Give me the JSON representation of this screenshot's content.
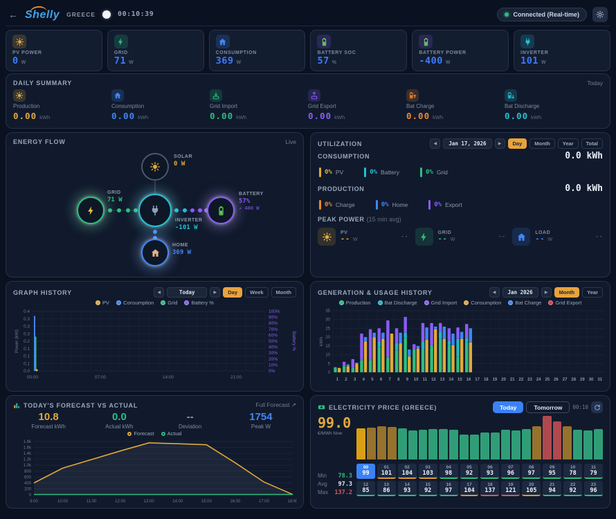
{
  "header": {
    "back_icon": "←",
    "brand": "Shelly",
    "site": "GREECE",
    "clock": "00:10:39",
    "status": "Connected (Real-time)"
  },
  "icons": {
    "prev": "◀",
    "next": "▶"
  },
  "stats": [
    {
      "label": "PV POWER",
      "value": "0",
      "unit": "W",
      "icon": "sun-icon",
      "icon_color": "#e2a93b",
      "tile_color": "#e2a93b"
    },
    {
      "label": "GRID",
      "value": "71",
      "unit": "W",
      "icon": "bolt-icon",
      "icon_color": "#2dbe7f",
      "tile_color": "#2dbe7f"
    },
    {
      "label": "CONSUMPTION",
      "value": "369",
      "unit": "W",
      "icon": "home-icon",
      "icon_color": "#4285f4",
      "tile_color": "#4285f4"
    },
    {
      "label": "BATTERY SOC",
      "value": "57",
      "unit": "%",
      "icon": "battery-icon",
      "icon_color": "#6ccf5f",
      "tile_color": "#8b5cf6"
    },
    {
      "label": "BATTERY POWER",
      "value": "-400",
      "unit": "W",
      "icon": "battery-icon",
      "icon_color": "#6ccf5f",
      "tile_color": "#8b5cf6"
    },
    {
      "label": "INVERTER",
      "value": "101",
      "unit": "W",
      "icon": "inverter-icon",
      "icon_color": "#22c0d4",
      "tile_color": "#22c0d4"
    }
  ],
  "daily_summary": {
    "title": "DAILY SUMMARY",
    "period": "Today",
    "items": [
      {
        "label": "Production",
        "value": "0.00",
        "unit": "kWh",
        "color": "#e2a93b",
        "icon": "sun-icon"
      },
      {
        "label": "Consumption",
        "value": "0.00",
        "unit": "kWh",
        "color": "#4285f4",
        "icon": "home-icon"
      },
      {
        "label": "Grid Import",
        "value": "0.00",
        "unit": "kWh",
        "color": "#2dbe7f",
        "icon": "grid-import-icon"
      },
      {
        "label": "Grid Export",
        "value": "0.00",
        "unit": "kWh",
        "color": "#8b5cf6",
        "icon": "grid-export-icon"
      },
      {
        "label": "Bat Charge",
        "value": "0.00",
        "unit": "kWh",
        "color": "#f0862c",
        "icon": "battery-charge-icon"
      },
      {
        "label": "Bat Discharge",
        "value": "0.00",
        "unit": "kWh",
        "color": "#22c0d4",
        "icon": "battery-discharge-icon"
      }
    ]
  },
  "energy_flow": {
    "title": "ENERGY FLOW",
    "live": "Live",
    "nodes": {
      "solar": {
        "label": "SOLAR",
        "value": "0 W",
        "color": "#e2a93b"
      },
      "grid": {
        "label": "GRID",
        "value": "71 W",
        "color": "#2dbe7f"
      },
      "inverter": {
        "label": "INVERTER",
        "value": "-101 W",
        "color": "#22c0d4"
      },
      "battery": {
        "label": "BATTERY",
        "value": "57%",
        "sub": "↗ 400 W",
        "color": "#8b5cf6"
      },
      "home": {
        "label": "HOME",
        "value": "369 W",
        "color": "#4285f4"
      }
    }
  },
  "utilization": {
    "title": "UTILIZATION",
    "date": "Jan 17, 2026",
    "ranges": [
      "Day",
      "Month",
      "Year",
      "Total"
    ],
    "active_range": "Day",
    "consumption": {
      "label": "CONSUMPTION",
      "value": "0.0 kWh",
      "legend": [
        {
          "pct": "0%",
          "label": "PV",
          "color": "#e2a93b"
        },
        {
          "pct": "0%",
          "label": "Battery",
          "color": "#22c0d4"
        },
        {
          "pct": "0%",
          "label": "Grid",
          "color": "#2dbe7f"
        }
      ]
    },
    "production": {
      "label": "PRODUCTION",
      "value": "0.0 kWh",
      "legend": [
        {
          "pct": "0%",
          "label": "Charge",
          "color": "#f0862c"
        },
        {
          "pct": "0%",
          "label": "Home",
          "color": "#4285f4"
        },
        {
          "pct": "0%",
          "label": "Export",
          "color": "#8b5cf6"
        }
      ]
    },
    "peak_power": {
      "title": "PEAK POWER",
      "subtitle": "(15 min avg)",
      "items": [
        {
          "label": "PV",
          "value": "--",
          "unit": "W",
          "right": "--",
          "icon": "sun-icon",
          "color": "#e2a93b"
        },
        {
          "label": "GRID",
          "value": "--",
          "unit": "W",
          "right": "--",
          "icon": "bolt-icon",
          "color": "#2dbe7f"
        },
        {
          "label": "LOAD",
          "value": "--",
          "unit": "W",
          "right": "--",
          "icon": "home-icon",
          "color": "#4285f4"
        }
      ]
    }
  },
  "graph_history": {
    "title": "GRAPH HISTORY",
    "date": "Today",
    "ranges": [
      "Day",
      "Week",
      "Month"
    ],
    "active_range": "Day",
    "legend": [
      {
        "name": "PV",
        "color": "#e2a93b"
      },
      {
        "name": "Consumption",
        "color": "#4285f4"
      },
      {
        "name": "Grid",
        "color": "#2dbe7f"
      },
      {
        "name": "Battery %",
        "color": "#8b5cf6"
      }
    ],
    "chart_data": {
      "type": "line",
      "ylabel_left": "Power (kW)",
      "ylabel_right": "Battery %",
      "y_left_ticks": [
        "0.4",
        "0.3",
        "0.3",
        "0.3",
        "0.2",
        "0.1",
        "0.1",
        "0.1",
        "0.0"
      ],
      "y_left_max": 0.4,
      "y_right_ticks": [
        "100%",
        "90%",
        "80%",
        "70%",
        "60%",
        "50%",
        "40%",
        "30%",
        "20%",
        "10%",
        "0%"
      ],
      "x_ticks": [
        "00:00",
        "07:00",
        "14:00",
        "21:00"
      ],
      "x_hours": 24,
      "spikes": [
        {
          "name": "Consumption",
          "color": "#4285f4",
          "value": 0.37
        },
        {
          "name": "Grid",
          "color": "#2dbe7f",
          "value": 0.23
        },
        {
          "name": "PV",
          "color": "#e2a93b",
          "value": 0.01
        }
      ]
    }
  },
  "generation_history": {
    "title": "GENERATION & USAGE HISTORY",
    "date": "Jan 2026",
    "ranges": [
      "Month",
      "Year"
    ],
    "active_range": "Month",
    "legend": [
      {
        "name": "Production",
        "color": "#2dbe7f"
      },
      {
        "name": "Bat Discharge",
        "color": "#1fb6c9"
      },
      {
        "name": "Grid Import",
        "color": "#8b5cf6"
      },
      {
        "name": "Consumption",
        "color": "#e2a93b"
      },
      {
        "name": "Bat Charge",
        "color": "#3f87f5"
      },
      {
        "name": "Grid Export",
        "color": "#d64550"
      }
    ],
    "chart_data": {
      "type": "bar",
      "ylabel": "kWh",
      "y_ticks": [
        0,
        5,
        10,
        15,
        20,
        25,
        30,
        35
      ],
      "y_max": 35,
      "categories": [
        1,
        2,
        3,
        4,
        5,
        6,
        7,
        8,
        9,
        10,
        11,
        12,
        13,
        14,
        15,
        16,
        17,
        18,
        19,
        20,
        21,
        22,
        23,
        24,
        25,
        26,
        27,
        28,
        29,
        30,
        31
      ],
      "series": [
        {
          "name": "Production",
          "stack": "gen",
          "color": "#2dbe7f",
          "values": [
            2.5,
            3.5,
            2.5,
            7,
            7,
            14.5,
            8.5,
            12.5,
            19.5,
            13,
            13,
            14.5,
            19,
            15.5,
            9,
            17
          ]
        },
        {
          "name": "Bat Discharge",
          "stack": "gen",
          "color": "#1fb6c9",
          "values": [
            0,
            0.5,
            0,
            0,
            0.5,
            3,
            0,
            4,
            3,
            0,
            4.5,
            1,
            4,
            2.5,
            10,
            2.5
          ]
        },
        {
          "name": "Grid Import",
          "stack": "gen",
          "color": "#8b5cf6",
          "values": [
            0.5,
            2,
            5,
            15,
            17,
            7.5,
            21,
            8.5,
            9,
            3,
            10.5,
            12.5,
            5,
            7,
            6.5,
            8
          ]
        },
        {
          "name": "Consumption",
          "stack": "use",
          "color": "#e2a93b",
          "values": [
            2.5,
            3.5,
            5,
            17.5,
            20,
            19,
            22,
            16.5,
            9,
            13.5,
            18.5,
            24.5,
            19,
            15.5,
            19,
            17
          ]
        },
        {
          "name": "Bat Charge",
          "stack": "use",
          "color": "#3f87f5",
          "values": [
            0,
            1,
            0.5,
            2.5,
            2.5,
            3.5,
            0,
            6,
            4,
            1.5,
            7,
            1.5,
            7,
            6.5,
            4,
            8
          ]
        },
        {
          "name": "Grid Export",
          "stack": "use",
          "color": "#d64550",
          "values": [
            0,
            0,
            0,
            0,
            0,
            0,
            0,
            0,
            0,
            0,
            0,
            0,
            0,
            0,
            0,
            0
          ]
        }
      ]
    }
  },
  "forecast": {
    "title": "TODAY'S FORECAST VS ACTUAL",
    "link": "Full Forecast ↗",
    "stats": [
      {
        "value": "10.8",
        "label": "Forecast kWh",
        "color": "#e2a93b"
      },
      {
        "value": "0.0",
        "label": "Actual kWh",
        "color": "#2dbe7f"
      },
      {
        "value": "--",
        "label": "Deviation",
        "color": "#8b98ab"
      },
      {
        "value": "1754",
        "label": "Peak W",
        "color": "#4285f4"
      }
    ],
    "legend": [
      {
        "name": "Forecast",
        "color": "#e2a93b"
      },
      {
        "name": "Actual",
        "color": "#2dbe7f"
      }
    ],
    "chart_data": {
      "type": "line",
      "y_ticks": [
        "1.8k",
        "1.6k",
        "1.4k",
        "1.2k",
        "1.0k",
        "800",
        "600",
        "400",
        "200",
        "0"
      ],
      "y_max": 1800,
      "x": [
        "9:00",
        "10:00",
        "11:00",
        "12:00",
        "13:00",
        "14:00",
        "15:00",
        "16:00",
        "17:00",
        "18:00"
      ],
      "series": [
        {
          "name": "Forecast",
          "color": "#e2a93b",
          "values": [
            400,
            900,
            1190,
            1480,
            1754,
            1725,
            1690,
            1080,
            430,
            10
          ]
        },
        {
          "name": "Actual",
          "color": "#2dbe7f",
          "values": [
            0,
            0,
            0,
            0,
            0,
            0,
            0,
            0,
            0,
            0
          ]
        }
      ]
    }
  },
  "price": {
    "title": "ELECTRICITY PRICE (GREECE)",
    "tabs": [
      "Today",
      "Tomorrow"
    ],
    "active_tab": "Today",
    "time": "00:10",
    "now_value": "99.0",
    "now_unit": "€/MWh Now",
    "stats": {
      "min_label": "Min",
      "min": "78.3",
      "min_color": "#2dbe7f",
      "avg_label": "Avg",
      "avg": "97.3",
      "avg_color": "#dfe6f0",
      "max_label": "Max",
      "max": "137.2",
      "max_color": "#cf5b63"
    },
    "bar_colors": {
      "now": "#d9a014",
      "low": "#2f9e77",
      "mid": "#96722c",
      "high": "#b0494f"
    },
    "cell_colors": {
      "now": "#3b82f6",
      "low": "#2dbe7f",
      "mid": "#e09a2d",
      "high": "#cf5b63"
    },
    "hours": [
      {
        "h": "00",
        "p": 99,
        "level": "now"
      },
      {
        "h": "01",
        "p": 101,
        "level": "mid"
      },
      {
        "h": "02",
        "p": 104,
        "level": "mid"
      },
      {
        "h": "03",
        "p": 103,
        "level": "mid"
      },
      {
        "h": "04",
        "p": 98,
        "level": "low"
      },
      {
        "h": "05",
        "p": 92,
        "level": "low"
      },
      {
        "h": "06",
        "p": 93,
        "level": "low"
      },
      {
        "h": "07",
        "p": 96,
        "level": "low"
      },
      {
        "h": "08",
        "p": 97,
        "level": "low"
      },
      {
        "h": "09",
        "p": 95,
        "level": "low"
      },
      {
        "h": "10",
        "p": 78,
        "level": "low"
      },
      {
        "h": "11",
        "p": 79,
        "level": "low"
      },
      {
        "h": "12",
        "p": 85,
        "level": "low"
      },
      {
        "h": "13",
        "p": 86,
        "level": "low"
      },
      {
        "h": "14",
        "p": 93,
        "level": "low"
      },
      {
        "h": "15",
        "p": 92,
        "level": "low"
      },
      {
        "h": "16",
        "p": 97,
        "level": "low"
      },
      {
        "h": "17",
        "p": 104,
        "level": "mid"
      },
      {
        "h": "18",
        "p": 137,
        "level": "high"
      },
      {
        "h": "19",
        "p": 121,
        "level": "high"
      },
      {
        "h": "20",
        "p": 105,
        "level": "mid"
      },
      {
        "h": "21",
        "p": 94,
        "level": "low"
      },
      {
        "h": "22",
        "p": 92,
        "level": "low"
      },
      {
        "h": "23",
        "p": 96,
        "level": "low"
      }
    ]
  }
}
